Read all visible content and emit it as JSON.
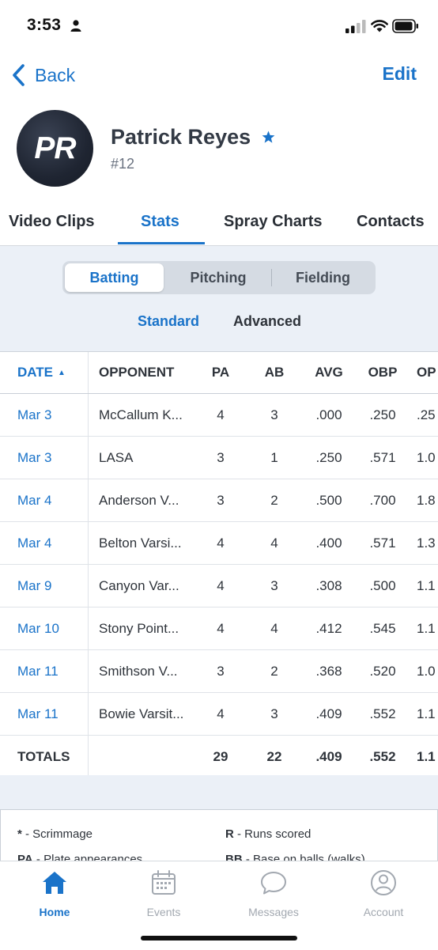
{
  "status_bar": {
    "time": "3:53"
  },
  "nav": {
    "back_label": "Back",
    "edit_label": "Edit"
  },
  "player": {
    "initials": "PR",
    "name": "Patrick Reyes",
    "number": "#12"
  },
  "tabs": [
    {
      "label": "Video Clips",
      "active": false
    },
    {
      "label": "Stats",
      "active": true
    },
    {
      "label": "Spray Charts",
      "active": false
    },
    {
      "label": "Contacts",
      "active": false
    }
  ],
  "stat_categories": [
    {
      "label": "Batting",
      "active": true
    },
    {
      "label": "Pitching",
      "active": false
    },
    {
      "label": "Fielding",
      "active": false
    }
  ],
  "stat_views": [
    {
      "label": "Standard",
      "active": true
    },
    {
      "label": "Advanced",
      "active": false
    }
  ],
  "table": {
    "headers": {
      "date": "DATE",
      "opponent": "OPPONENT",
      "pa": "PA",
      "ab": "AB",
      "avg": "AVG",
      "obp": "OBP",
      "ops": "OP"
    },
    "rows": [
      {
        "date": "Mar 3",
        "opponent": "McCallum K...",
        "pa": "4",
        "ab": "3",
        "avg": ".000",
        "obp": ".250",
        "ops": ".25"
      },
      {
        "date": "Mar 3",
        "opponent": "LASA",
        "pa": "3",
        "ab": "1",
        "avg": ".250",
        "obp": ".571",
        "ops": "1.0"
      },
      {
        "date": "Mar 4",
        "opponent": "Anderson V...",
        "pa": "3",
        "ab": "2",
        "avg": ".500",
        "obp": ".700",
        "ops": "1.8"
      },
      {
        "date": "Mar 4",
        "opponent": "Belton Varsi...",
        "pa": "4",
        "ab": "4",
        "avg": ".400",
        "obp": ".571",
        "ops": "1.3"
      },
      {
        "date": "Mar 9",
        "opponent": "Canyon Var...",
        "pa": "4",
        "ab": "3",
        "avg": ".308",
        "obp": ".500",
        "ops": "1.1"
      },
      {
        "date": "Mar 10",
        "opponent": "Stony Point...",
        "pa": "4",
        "ab": "4",
        "avg": ".412",
        "obp": ".545",
        "ops": "1.1"
      },
      {
        "date": "Mar 11",
        "opponent": "Smithson V...",
        "pa": "3",
        "ab": "2",
        "avg": ".368",
        "obp": ".520",
        "ops": "1.0"
      },
      {
        "date": "Mar 11",
        "opponent": "Bowie Varsit...",
        "pa": "4",
        "ab": "3",
        "avg": ".409",
        "obp": ".552",
        "ops": "1.1"
      }
    ],
    "totals": {
      "label": "TOTALS",
      "pa": "29",
      "ab": "22",
      "avg": ".409",
      "obp": ".552",
      "ops": "1.1"
    }
  },
  "legend": [
    {
      "key": "*",
      "text": " - Scrimmage"
    },
    {
      "key": "R",
      "text": " - Runs scored"
    },
    {
      "key": "PA",
      "text": " - Plate appearances"
    },
    {
      "key": "BB",
      "text": " - Base on balls (walks)"
    }
  ],
  "tabbar": [
    {
      "label": "Home",
      "icon": "home-icon",
      "active": true
    },
    {
      "label": "Events",
      "icon": "calendar-icon",
      "active": false
    },
    {
      "label": "Messages",
      "icon": "chat-bubble-icon",
      "active": false
    },
    {
      "label": "Account",
      "icon": "account-icon",
      "active": false
    }
  ],
  "colors": {
    "accent": "#1a73c9",
    "panel_bg": "#ebf0f7",
    "text": "#2e333a",
    "inactive": "#a2a8b0"
  }
}
